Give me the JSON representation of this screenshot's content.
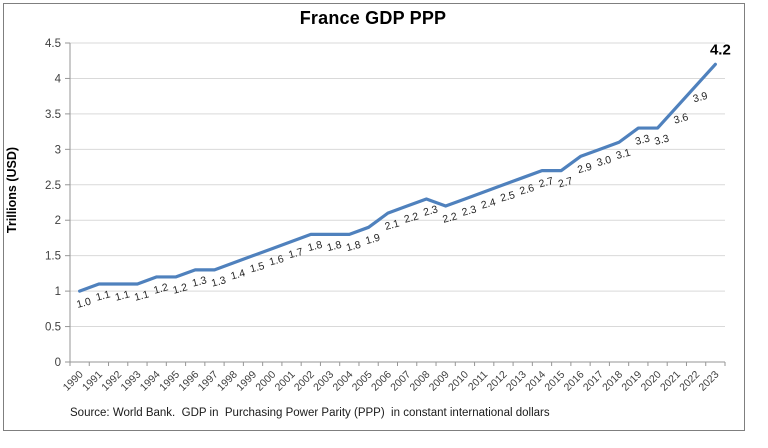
{
  "window": {
    "background_color": "#ffffff",
    "frame_border_color": "#7f7f7f"
  },
  "chart": {
    "title": "France GDP PPP",
    "y_axis_title": "Trillions (USD)",
    "source_note": "Source: World Bank.  GDP in  Purchasing Power Parity (PPP)  in constant international dollars"
  },
  "chart_data": {
    "type": "line",
    "title": "France GDP PPP",
    "xlabel": "",
    "ylabel": "Trillions (USD)",
    "categories": [
      "1990",
      "1991",
      "1992",
      "1993",
      "1994",
      "1995",
      "1996",
      "1997",
      "1998",
      "1999",
      "2000",
      "2001",
      "2002",
      "2003",
      "2004",
      "2005",
      "2006",
      "2007",
      "2008",
      "2009",
      "2010",
      "2011",
      "2012",
      "2013",
      "2014",
      "2015",
      "2016",
      "2017",
      "2018",
      "2019",
      "2020",
      "2021",
      "2022",
      "2023"
    ],
    "series": [
      {
        "name": "France GDP PPP",
        "values": [
          1.0,
          1.1,
          1.1,
          1.1,
          1.2,
          1.2,
          1.3,
          1.3,
          1.4,
          1.5,
          1.6,
          1.7,
          1.8,
          1.8,
          1.8,
          1.9,
          2.1,
          2.2,
          2.3,
          2.2,
          2.3,
          2.4,
          2.5,
          2.6,
          2.7,
          2.7,
          2.9,
          3.0,
          3.1,
          3.3,
          3.3,
          3.6,
          3.9,
          4.2
        ]
      }
    ],
    "data_labels": [
      "1.0",
      "1.1",
      "1.1",
      "1.1",
      "1.2",
      "1.2",
      "1.3",
      "1.3",
      "1.4",
      "1.5",
      "1.6",
      "1.7",
      "1.8",
      "1.8",
      "1.8",
      "1.9",
      "2.1",
      "2.2",
      "2.3",
      "2.2",
      "2.3",
      "2.4",
      "2.5",
      "2.6",
      "2.7",
      "2.7",
      "2.9",
      "3.0",
      "3.1",
      "3.3",
      "3.3",
      "3.6",
      "3.9",
      "4.2"
    ],
    "emphasized_final_label": "4.2",
    "ylim": [
      0,
      4.5
    ],
    "yticks": [
      "0",
      "0.5",
      "1",
      "1.5",
      "2",
      "2.5",
      "3",
      "3.5",
      "4",
      "4.5"
    ],
    "grid": true,
    "legend": "none",
    "source": "Source: World Bank.  GDP in  Purchasing Power Parity (PPP)  in constant international dollars",
    "line_color": "#4f81bd",
    "gridline_color": "#d9d9d9",
    "axis_color": "#969696",
    "data_label_color": "#262626",
    "tick_label_color": "#3f3f3f"
  }
}
